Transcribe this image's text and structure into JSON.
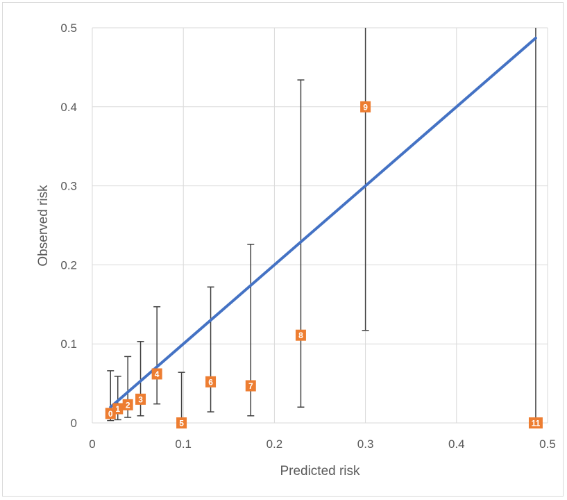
{
  "chart_data": {
    "type": "scatter",
    "title": "",
    "xlabel": "Predicted risk",
    "ylabel": "Observed risk",
    "xlim": [
      0,
      0.5
    ],
    "ylim": [
      0,
      0.5
    ],
    "x_ticks": [
      "0",
      "0.1",
      "0.2",
      "0.3",
      "0.4",
      "0.5"
    ],
    "y_ticks": [
      "0",
      "0.1",
      "0.2",
      "0.3",
      "0.4",
      "0.5"
    ],
    "grid": true,
    "legend": "none",
    "colors": {
      "points": "#ed7d31",
      "line": "#4472c4",
      "error_bars": "#404040",
      "grid": "#d9d9d9",
      "text": "#595959"
    },
    "points": [
      {
        "label": "0",
        "x": 0.02,
        "y": 0.012,
        "y_low": 0.003,
        "y_high": 0.066
      },
      {
        "label": "1",
        "x": 0.028,
        "y": 0.018,
        "y_low": 0.004,
        "y_high": 0.059
      },
      {
        "label": "2",
        "x": 0.039,
        "y": 0.023,
        "y_low": 0.007,
        "y_high": 0.084
      },
      {
        "label": "3",
        "x": 0.053,
        "y": 0.03,
        "y_low": 0.009,
        "y_high": 0.103
      },
      {
        "label": "4",
        "x": 0.071,
        "y": 0.062,
        "y_low": 0.024,
        "y_high": 0.147
      },
      {
        "label": "5",
        "x": 0.098,
        "y": 0.0,
        "y_low": 0.0,
        "y_high": 0.064
      },
      {
        "label": "6",
        "x": 0.13,
        "y": 0.052,
        "y_low": 0.014,
        "y_high": 0.172
      },
      {
        "label": "7",
        "x": 0.174,
        "y": 0.047,
        "y_low": 0.009,
        "y_high": 0.226
      },
      {
        "label": "8",
        "x": 0.229,
        "y": 0.111,
        "y_low": 0.02,
        "y_high": 0.434
      },
      {
        "label": "9",
        "x": 0.3,
        "y": 0.4,
        "y_low": 0.117,
        "y_high": 0.5
      },
      {
        "label": "11",
        "x": 0.487,
        "y": 0.0,
        "y_low": 0.0,
        "y_high": 0.5
      }
    ],
    "reference_line": {
      "x": [
        0.02,
        0.487
      ],
      "y": [
        0.02,
        0.487
      ]
    }
  }
}
